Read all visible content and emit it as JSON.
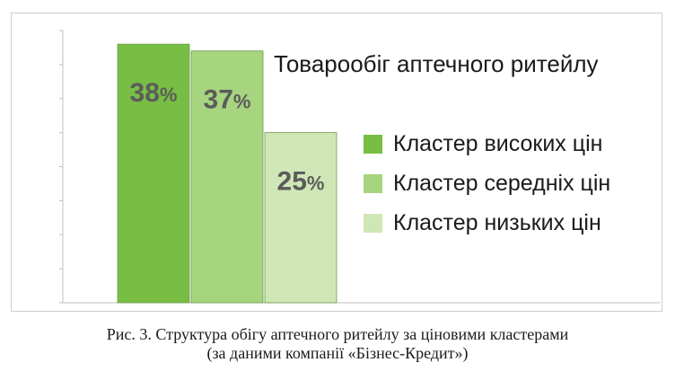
{
  "chart_data": {
    "type": "bar",
    "title": "Товарообіг аптечного ритейлу",
    "categories": [
      "Кластер високих цін",
      "Кластер середніх цін",
      "Кластер низьких цін"
    ],
    "values": [
      38,
      37,
      25
    ],
    "value_labels": [
      {
        "number": "38",
        "unit": "%"
      },
      {
        "number": "37",
        "unit": "%"
      },
      {
        "number": "25",
        "unit": "%"
      }
    ],
    "colors": [
      "#79be44",
      "#a6d47f",
      "#cfe7b6"
    ],
    "ylim": [
      0,
      40
    ],
    "grid": false,
    "legend_position": "right"
  },
  "caption": {
    "line1": "Рис. 3. Структура обігу аптечного ритейлу за ціновими кластерами",
    "line2": "(за даними компанії «Бізнес-Кредит»)"
  }
}
